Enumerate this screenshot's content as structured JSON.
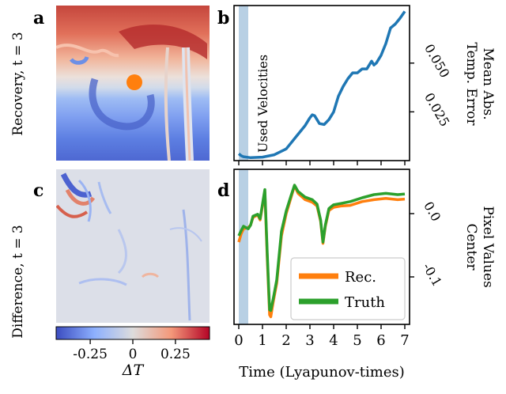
{
  "panels": {
    "a": {
      "letter": "a",
      "ylabel": "Recovery, t = 3"
    },
    "b": {
      "letter": "b",
      "shade_label": "Used Velocities",
      "ylabel_line1": "Mean Abs.",
      "ylabel_line2": "Temp. Error"
    },
    "c": {
      "letter": "c",
      "ylabel": "Difference, t = 3"
    },
    "d": {
      "letter": "d",
      "ylabel_line1": "Pixel Values",
      "ylabel_line2": "Center"
    }
  },
  "colorbar": {
    "label": "ΔT",
    "ticks": [
      "-0.25",
      "0",
      "0.25"
    ],
    "tick_values": [
      -0.25,
      0,
      0.25
    ],
    "range": [
      -0.45,
      0.45
    ]
  },
  "shared_xlabel": "Time (Lyapunov-times)",
  "colors": {
    "rec": "#ff7f0e",
    "truth": "#2ca02c",
    "error": "#1f77b4",
    "shade": "#b8d0e4",
    "marker": "#ff7f0e"
  },
  "chart_data": [
    {
      "type": "line",
      "panel": "b",
      "title": "",
      "xlabel": "Time (Lyapunov-times)",
      "ylabel": "Mean Abs. Temp. Error",
      "xlim": [
        -0.2,
        7.2
      ],
      "ylim": [
        0.0,
        0.0795
      ],
      "x_ticks": [
        0,
        1,
        2,
        3,
        4,
        5,
        6,
        7
      ],
      "y_ticks": [
        0.025,
        0.05
      ],
      "y_tick_labels": [
        "0.025",
        "0.050"
      ],
      "shaded_x_range": [
        0,
        0.4
      ],
      "series": [
        {
          "x": [
            0.0,
            0.1,
            0.2,
            0.5,
            1.0,
            1.5,
            2.0,
            2.2,
            2.4,
            2.6,
            2.8,
            3.0,
            3.1,
            3.2,
            3.4,
            3.6,
            3.8,
            4.0,
            4.2,
            4.4,
            4.6,
            4.8,
            5.0,
            5.2,
            5.4,
            5.6,
            5.7,
            5.8,
            5.9,
            6.0,
            6.2,
            6.4,
            6.6,
            6.8,
            7.0
          ],
          "y": [
            0.0035,
            0.0025,
            0.002,
            0.0015,
            0.0018,
            0.003,
            0.006,
            0.009,
            0.012,
            0.015,
            0.018,
            0.022,
            0.0235,
            0.023,
            0.019,
            0.0185,
            0.021,
            0.025,
            0.033,
            0.038,
            0.042,
            0.045,
            0.045,
            0.047,
            0.047,
            0.051,
            0.049,
            0.05,
            0.052,
            0.054,
            0.06,
            0.068,
            0.07,
            0.073,
            0.0765
          ]
        }
      ]
    },
    {
      "type": "line",
      "panel": "d",
      "title": "",
      "xlabel": "Time (Lyapunov-times)",
      "ylabel": "Pixel Values Center",
      "xlim": [
        -0.2,
        7.2
      ],
      "ylim": [
        -0.175,
        0.07
      ],
      "x_ticks": [
        0,
        1,
        2,
        3,
        4,
        5,
        6,
        7
      ],
      "y_ticks": [
        0.0,
        -0.1
      ],
      "y_tick_labels": [
        "0.0",
        "-0.1"
      ],
      "shaded_x_range": [
        0,
        0.4
      ],
      "legend": "lower-right",
      "series": [
        {
          "name": "Rec.",
          "x": [
            0.0,
            0.1,
            0.2,
            0.4,
            0.5,
            0.6,
            0.8,
            0.9,
            1.0,
            1.1,
            1.2,
            1.3,
            1.35,
            1.45,
            1.6,
            1.8,
            2.0,
            2.2,
            2.35,
            2.5,
            2.8,
            3.1,
            3.3,
            3.45,
            3.55,
            3.65,
            3.8,
            4.0,
            4.3,
            4.7,
            5.2,
            5.7,
            6.2,
            6.7,
            7.0
          ],
          "y": [
            -0.045,
            -0.032,
            -0.024,
            -0.022,
            -0.018,
            -0.006,
            -0.002,
            -0.01,
            0.012,
            0.034,
            -0.07,
            -0.16,
            -0.163,
            -0.14,
            -0.11,
            -0.035,
            0.0,
            0.025,
            0.044,
            0.032,
            0.022,
            0.018,
            0.012,
            -0.012,
            -0.047,
            -0.02,
            0.005,
            0.01,
            0.012,
            0.013,
            0.019,
            0.022,
            0.024,
            0.022,
            0.023
          ]
        },
        {
          "name": "Truth",
          "x": [
            0.0,
            0.1,
            0.2,
            0.4,
            0.5,
            0.6,
            0.8,
            0.9,
            1.0,
            1.1,
            1.2,
            1.3,
            1.35,
            1.45,
            1.6,
            1.8,
            2.0,
            2.2,
            2.35,
            2.5,
            2.8,
            3.1,
            3.3,
            3.45,
            3.55,
            3.65,
            3.8,
            4.0,
            4.3,
            4.7,
            5.2,
            5.7,
            6.2,
            6.7,
            7.0
          ],
          "y": [
            -0.035,
            -0.027,
            -0.02,
            -0.024,
            -0.018,
            -0.004,
            -0.001,
            -0.008,
            0.015,
            0.038,
            -0.062,
            -0.152,
            -0.153,
            -0.135,
            -0.105,
            -0.028,
            0.004,
            0.028,
            0.045,
            0.035,
            0.026,
            0.022,
            0.015,
            -0.01,
            -0.045,
            -0.018,
            0.008,
            0.014,
            0.016,
            0.019,
            0.025,
            0.03,
            0.032,
            0.03,
            0.031
          ]
        }
      ]
    }
  ]
}
